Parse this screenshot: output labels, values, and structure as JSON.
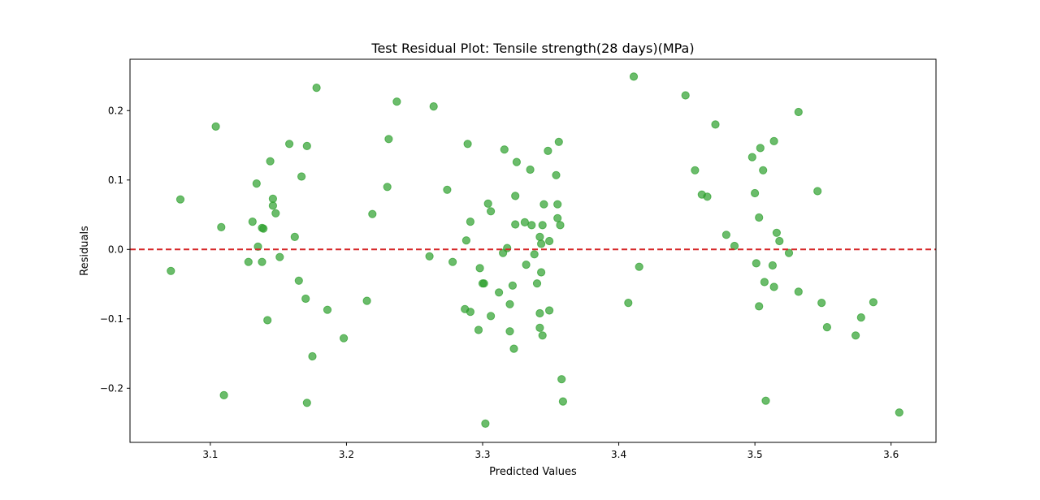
{
  "chart_data": {
    "type": "scatter",
    "title": "Test Residual Plot: Tensile strength(28 days)(MPa)",
    "xlabel": "Predicted Values",
    "ylabel": "Residuals",
    "xlim": [
      3.041,
      3.633
    ],
    "ylim": [
      -0.278,
      0.274
    ],
    "xticks": [
      {
        "value": 3.1,
        "label": "3.1"
      },
      {
        "value": 3.2,
        "label": "3.2"
      },
      {
        "value": 3.3,
        "label": "3.3"
      },
      {
        "value": 3.4,
        "label": "3.4"
      },
      {
        "value": 3.5,
        "label": "3.5"
      },
      {
        "value": 3.6,
        "label": "3.6"
      }
    ],
    "yticks": [
      {
        "value": -0.2,
        "label": "−0.2"
      },
      {
        "value": -0.1,
        "label": "−0.1"
      },
      {
        "value": 0.0,
        "label": "0.0"
      },
      {
        "value": 0.1,
        "label": "0.1"
      },
      {
        "value": 0.2,
        "label": "0.2"
      }
    ],
    "reference_line": {
      "y": 0,
      "style": "dashed",
      "color": "#d62728"
    },
    "point_color": "#2ca02c",
    "point_alpha": 0.7,
    "grid": false,
    "points": [
      {
        "x": 3.071,
        "y": -0.031
      },
      {
        "x": 3.078,
        "y": 0.072
      },
      {
        "x": 3.104,
        "y": 0.177
      },
      {
        "x": 3.108,
        "y": 0.032
      },
      {
        "x": 3.11,
        "y": -0.21
      },
      {
        "x": 3.128,
        "y": -0.018
      },
      {
        "x": 3.131,
        "y": 0.04
      },
      {
        "x": 3.134,
        "y": 0.095
      },
      {
        "x": 3.135,
        "y": 0.004
      },
      {
        "x": 3.138,
        "y": 0.031
      },
      {
        "x": 3.139,
        "y": 0.03
      },
      {
        "x": 3.138,
        "y": -0.018
      },
      {
        "x": 3.142,
        "y": -0.102
      },
      {
        "x": 3.144,
        "y": 0.127
      },
      {
        "x": 3.146,
        "y": 0.063
      },
      {
        "x": 3.146,
        "y": 0.073
      },
      {
        "x": 3.148,
        "y": 0.052
      },
      {
        "x": 3.151,
        "y": -0.011
      },
      {
        "x": 3.158,
        "y": 0.152
      },
      {
        "x": 3.162,
        "y": 0.018
      },
      {
        "x": 3.165,
        "y": -0.045
      },
      {
        "x": 3.167,
        "y": 0.105
      },
      {
        "x": 3.17,
        "y": -0.071
      },
      {
        "x": 3.171,
        "y": 0.149
      },
      {
        "x": 3.171,
        "y": -0.221
      },
      {
        "x": 3.175,
        "y": -0.154
      },
      {
        "x": 3.178,
        "y": 0.233
      },
      {
        "x": 3.186,
        "y": -0.087
      },
      {
        "x": 3.198,
        "y": -0.128
      },
      {
        "x": 3.215,
        "y": -0.074
      },
      {
        "x": 3.219,
        "y": 0.051
      },
      {
        "x": 3.23,
        "y": 0.09
      },
      {
        "x": 3.231,
        "y": 0.159
      },
      {
        "x": 3.237,
        "y": 0.213
      },
      {
        "x": 3.261,
        "y": -0.01
      },
      {
        "x": 3.264,
        "y": 0.206
      },
      {
        "x": 3.274,
        "y": 0.086
      },
      {
        "x": 3.278,
        "y": -0.018
      },
      {
        "x": 3.287,
        "y": -0.086
      },
      {
        "x": 3.288,
        "y": 0.013
      },
      {
        "x": 3.289,
        "y": 0.152
      },
      {
        "x": 3.291,
        "y": -0.09
      },
      {
        "x": 3.291,
        "y": 0.04
      },
      {
        "x": 3.297,
        "y": -0.116
      },
      {
        "x": 3.298,
        "y": -0.027
      },
      {
        "x": 3.3,
        "y": -0.049
      },
      {
        "x": 3.301,
        "y": -0.049
      },
      {
        "x": 3.302,
        "y": -0.251
      },
      {
        "x": 3.304,
        "y": 0.066
      },
      {
        "x": 3.306,
        "y": 0.055
      },
      {
        "x": 3.306,
        "y": -0.096
      },
      {
        "x": 3.312,
        "y": -0.062
      },
      {
        "x": 3.315,
        "y": -0.005
      },
      {
        "x": 3.316,
        "y": 0.144
      },
      {
        "x": 3.318,
        "y": 0.002
      },
      {
        "x": 3.32,
        "y": -0.079
      },
      {
        "x": 3.32,
        "y": -0.118
      },
      {
        "x": 3.322,
        "y": -0.052
      },
      {
        "x": 3.323,
        "y": -0.143
      },
      {
        "x": 3.324,
        "y": 0.077
      },
      {
        "x": 3.324,
        "y": 0.036
      },
      {
        "x": 3.325,
        "y": 0.126
      },
      {
        "x": 3.331,
        "y": 0.039
      },
      {
        "x": 3.332,
        "y": -0.022
      },
      {
        "x": 3.335,
        "y": 0.115
      },
      {
        "x": 3.336,
        "y": 0.035
      },
      {
        "x": 3.338,
        "y": -0.007
      },
      {
        "x": 3.34,
        "y": -0.049
      },
      {
        "x": 3.342,
        "y": 0.018
      },
      {
        "x": 3.342,
        "y": -0.092
      },
      {
        "x": 3.343,
        "y": 0.008
      },
      {
        "x": 3.342,
        "y": -0.113
      },
      {
        "x": 3.343,
        "y": -0.033
      },
      {
        "x": 3.344,
        "y": -0.124
      },
      {
        "x": 3.344,
        "y": 0.035
      },
      {
        "x": 3.345,
        "y": 0.065
      },
      {
        "x": 3.348,
        "y": 0.142
      },
      {
        "x": 3.349,
        "y": 0.012
      },
      {
        "x": 3.349,
        "y": -0.088
      },
      {
        "x": 3.354,
        "y": 0.107
      },
      {
        "x": 3.355,
        "y": 0.065
      },
      {
        "x": 3.355,
        "y": 0.045
      },
      {
        "x": 3.356,
        "y": 0.155
      },
      {
        "x": 3.357,
        "y": 0.035
      },
      {
        "x": 3.358,
        "y": -0.187
      },
      {
        "x": 3.359,
        "y": -0.219
      },
      {
        "x": 3.407,
        "y": -0.077
      },
      {
        "x": 3.411,
        "y": 0.249
      },
      {
        "x": 3.415,
        "y": -0.025
      },
      {
        "x": 3.449,
        "y": 0.222
      },
      {
        "x": 3.456,
        "y": 0.114
      },
      {
        "x": 3.461,
        "y": 0.079
      },
      {
        "x": 3.465,
        "y": 0.076
      },
      {
        "x": 3.471,
        "y": 0.18
      },
      {
        "x": 3.479,
        "y": 0.021
      },
      {
        "x": 3.485,
        "y": 0.005
      },
      {
        "x": 3.498,
        "y": 0.133
      },
      {
        "x": 3.5,
        "y": 0.081
      },
      {
        "x": 3.501,
        "y": -0.02
      },
      {
        "x": 3.503,
        "y": -0.082
      },
      {
        "x": 3.503,
        "y": 0.046
      },
      {
        "x": 3.504,
        "y": 0.146
      },
      {
        "x": 3.506,
        "y": 0.114
      },
      {
        "x": 3.507,
        "y": -0.047
      },
      {
        "x": 3.508,
        "y": -0.218
      },
      {
        "x": 3.513,
        "y": -0.023
      },
      {
        "x": 3.514,
        "y": -0.054
      },
      {
        "x": 3.514,
        "y": 0.156
      },
      {
        "x": 3.516,
        "y": 0.024
      },
      {
        "x": 3.518,
        "y": 0.012
      },
      {
        "x": 3.525,
        "y": -0.005
      },
      {
        "x": 3.532,
        "y": -0.061
      },
      {
        "x": 3.532,
        "y": 0.198
      },
      {
        "x": 3.546,
        "y": 0.084
      },
      {
        "x": 3.549,
        "y": -0.077
      },
      {
        "x": 3.553,
        "y": -0.112
      },
      {
        "x": 3.574,
        "y": -0.124
      },
      {
        "x": 3.578,
        "y": -0.098
      },
      {
        "x": 3.587,
        "y": -0.076
      },
      {
        "x": 3.606,
        "y": -0.235
      }
    ]
  }
}
